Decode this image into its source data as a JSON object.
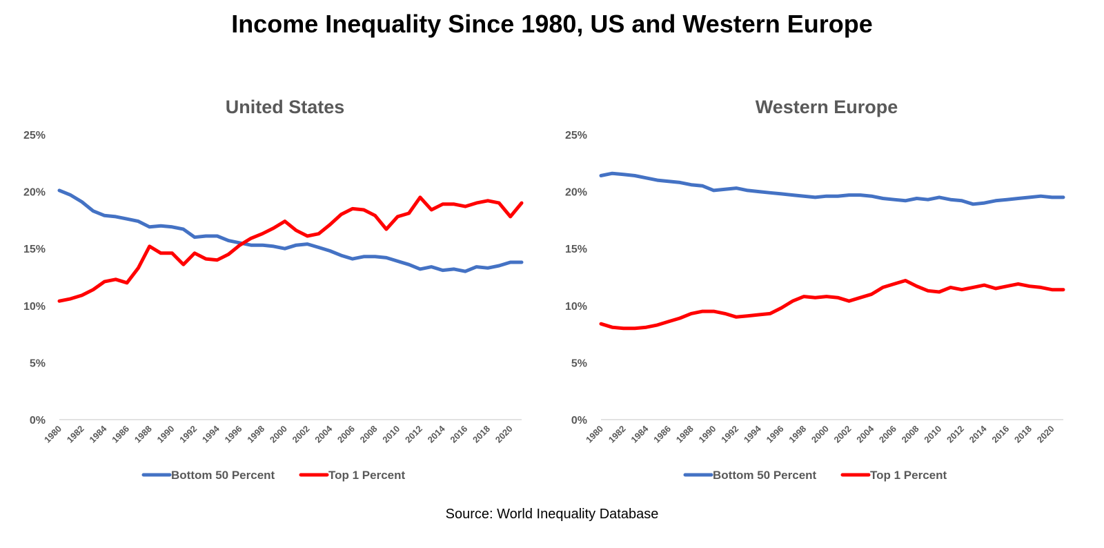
{
  "title": "Income Inequality Since 1980, US and Western Europe",
  "source": "Source: World Inequality Database",
  "colors": {
    "bottom50": "#4472C4",
    "top1": "#FF0000",
    "axis": "#D9D9D9",
    "text": "#595959"
  },
  "chart_data": [
    {
      "type": "line",
      "title": "United States",
      "x": [
        1980,
        1981,
        1982,
        1983,
        1984,
        1985,
        1986,
        1987,
        1988,
        1989,
        1990,
        1991,
        1992,
        1993,
        1994,
        1995,
        1996,
        1997,
        1998,
        1999,
        2000,
        2001,
        2002,
        2003,
        2004,
        2005,
        2006,
        2007,
        2008,
        2009,
        2010,
        2011,
        2012,
        2013,
        2014,
        2015,
        2016,
        2017,
        2018,
        2019,
        2020,
        2021
      ],
      "x_tick_labels": [
        "1980",
        "1982",
        "1984",
        "1986",
        "1988",
        "1990",
        "1992",
        "1994",
        "1996",
        "1998",
        "2000",
        "2002",
        "2004",
        "2006",
        "2008",
        "2010",
        "2012",
        "2014",
        "2016",
        "2018",
        "2020"
      ],
      "y_tick_labels": [
        "0%",
        "5%",
        "10%",
        "15%",
        "20%",
        "25%"
      ],
      "ylim": [
        0,
        25
      ],
      "grid": false,
      "legend_position": "bottom",
      "series": [
        {
          "name": "Bottom 50 Percent",
          "values": [
            20.1,
            19.7,
            19.1,
            18.3,
            17.9,
            17.8,
            17.6,
            17.4,
            16.9,
            17.0,
            16.9,
            16.7,
            16.0,
            16.1,
            16.1,
            15.7,
            15.5,
            15.3,
            15.3,
            15.2,
            15.0,
            15.3,
            15.4,
            15.1,
            14.8,
            14.4,
            14.1,
            14.3,
            14.3,
            14.2,
            13.9,
            13.6,
            13.2,
            13.4,
            13.1,
            13.2,
            13.0,
            13.4,
            13.3,
            13.5,
            13.8,
            13.8
          ]
        },
        {
          "name": "Top 1 Percent",
          "values": [
            10.4,
            10.6,
            10.9,
            11.4,
            12.1,
            12.3,
            12.0,
            13.3,
            15.2,
            14.6,
            14.6,
            13.6,
            14.6,
            14.1,
            14.0,
            14.5,
            15.3,
            15.9,
            16.3,
            16.8,
            17.4,
            16.6,
            16.1,
            16.3,
            17.1,
            18.0,
            18.5,
            18.4,
            17.9,
            16.7,
            17.8,
            18.1,
            19.5,
            18.4,
            18.9,
            18.9,
            18.7,
            19.0,
            19.2,
            19.0,
            17.8,
            19.0
          ]
        }
      ]
    },
    {
      "type": "line",
      "title": "Western Europe",
      "x": [
        1980,
        1981,
        1982,
        1983,
        1984,
        1985,
        1986,
        1987,
        1988,
        1989,
        1990,
        1991,
        1992,
        1993,
        1994,
        1995,
        1996,
        1997,
        1998,
        1999,
        2000,
        2001,
        2002,
        2003,
        2004,
        2005,
        2006,
        2007,
        2008,
        2009,
        2010,
        2011,
        2012,
        2013,
        2014,
        2015,
        2016,
        2017,
        2018,
        2019,
        2020,
        2021
      ],
      "x_tick_labels": [
        "1980",
        "1982",
        "1984",
        "1986",
        "1988",
        "1990",
        "1992",
        "1994",
        "1996",
        "1998",
        "2000",
        "2002",
        "2004",
        "2006",
        "2008",
        "2010",
        "2012",
        "2014",
        "2016",
        "2018",
        "2020"
      ],
      "y_tick_labels": [
        "0%",
        "5%",
        "10%",
        "15%",
        "20%",
        "25%"
      ],
      "ylim": [
        0,
        25
      ],
      "grid": false,
      "legend_position": "bottom",
      "series": [
        {
          "name": "Bottom 50 Percent",
          "values": [
            21.4,
            21.6,
            21.5,
            21.4,
            21.2,
            21.0,
            20.9,
            20.8,
            20.6,
            20.5,
            20.1,
            20.2,
            20.3,
            20.1,
            20.0,
            19.9,
            19.8,
            19.7,
            19.6,
            19.5,
            19.6,
            19.6,
            19.7,
            19.7,
            19.6,
            19.4,
            19.3,
            19.2,
            19.4,
            19.3,
            19.5,
            19.3,
            19.2,
            18.9,
            19.0,
            19.2,
            19.3,
            19.4,
            19.5,
            19.6,
            19.5,
            19.5
          ]
        },
        {
          "name": "Top 1 Percent",
          "values": [
            8.4,
            8.1,
            8.0,
            8.0,
            8.1,
            8.3,
            8.6,
            8.9,
            9.3,
            9.5,
            9.5,
            9.3,
            9.0,
            9.1,
            9.2,
            9.3,
            9.8,
            10.4,
            10.8,
            10.7,
            10.8,
            10.7,
            10.4,
            10.7,
            11.0,
            11.6,
            11.9,
            12.2,
            11.7,
            11.3,
            11.2,
            11.6,
            11.4,
            11.6,
            11.8,
            11.5,
            11.7,
            11.9,
            11.7,
            11.6,
            11.4,
            11.4
          ]
        }
      ]
    }
  ]
}
